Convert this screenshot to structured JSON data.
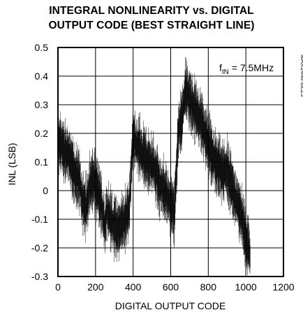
{
  "chart_data": {
    "type": "line",
    "title": "INTEGRAL NONLINEARITY vs. DIGITAL",
    "subtitle": "OUTPUT CODE (BEST STRAIGHT LINE)",
    "xlabel": "DIGITAL OUTPUT CODE",
    "ylabel": "INL (LSB)",
    "xlim": [
      0,
      1200
    ],
    "ylim": [
      -0.3,
      0.5
    ],
    "x_ticks": [
      "0",
      "200",
      "400",
      "600",
      "800",
      "1000",
      "1200"
    ],
    "y_ticks": [
      "0.5",
      "0.4",
      "0.3",
      "0.2",
      "0.1",
      "0",
      "-0.1",
      "-0.2",
      "-0.3"
    ],
    "grid": true,
    "annotation": {
      "prefix": "f",
      "sub": "IN",
      "suffix": " = 7.5MHz"
    },
    "part_id": "MAX1446 toc23",
    "series": [
      {
        "x": [
          0,
          20,
          40,
          60,
          80,
          100,
          120,
          130,
          150,
          170,
          190,
          210,
          230,
          250,
          260,
          280,
          300,
          320,
          340,
          360,
          380,
          400,
          420,
          440,
          460,
          480,
          500,
          520,
          540,
          560,
          580,
          600,
          620,
          640,
          660,
          680,
          700,
          720,
          740,
          760,
          780,
          800,
          820,
          840,
          860,
          880,
          900,
          920,
          940,
          960,
          980,
          1000,
          1023
        ],
        "y": [
          0.17,
          0.16,
          0.13,
          0.12,
          0.07,
          0.05,
          0.02,
          -0.04,
          -0.06,
          0.02,
          0.04,
          0.0,
          -0.05,
          -0.12,
          -0.07,
          -0.1,
          -0.12,
          -0.14,
          -0.11,
          -0.1,
          -0.05,
          0.19,
          0.16,
          0.14,
          0.12,
          0.1,
          0.09,
          0.07,
          0.02,
          0.01,
          -0.02,
          -0.04,
          -0.08,
          0.21,
          0.25,
          0.36,
          0.32,
          0.29,
          0.27,
          0.24,
          0.21,
          0.16,
          0.13,
          0.1,
          0.09,
          0.06,
          0.08,
          0.03,
          -0.02,
          -0.05,
          -0.1,
          -0.17,
          -0.22
        ]
      }
    ]
  }
}
